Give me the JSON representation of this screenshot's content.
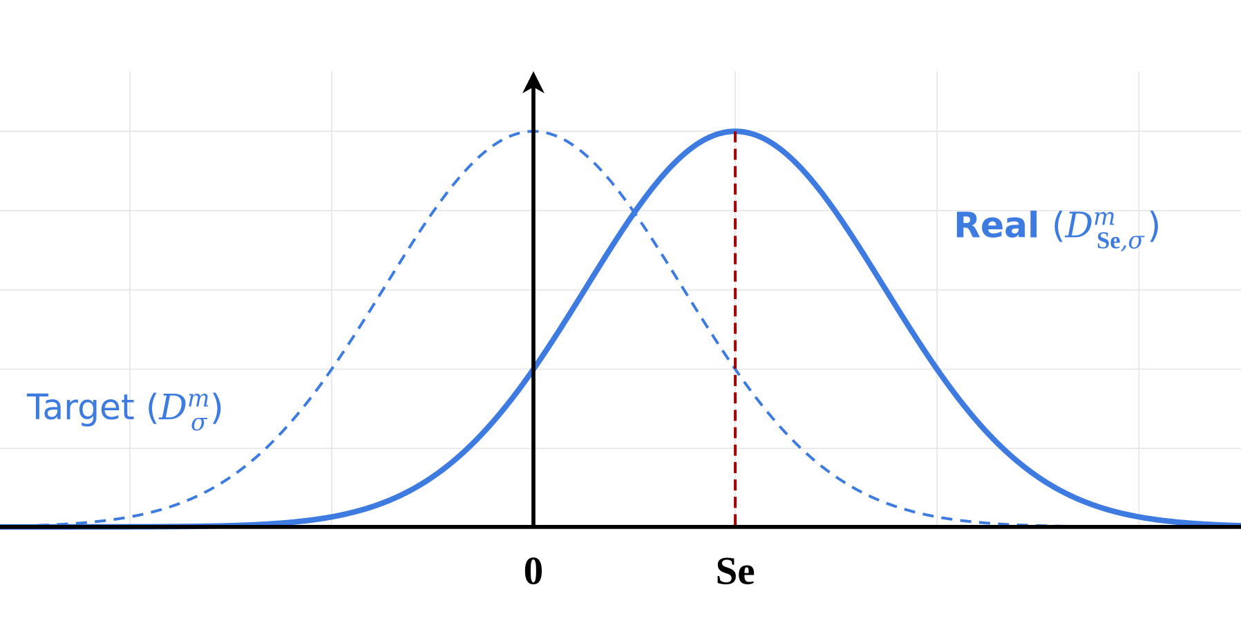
{
  "x_labels": {
    "origin": "0",
    "shift": "Se"
  },
  "target_label": {
    "name": "Target",
    "open": "(",
    "symbol": "D",
    "sup": "m",
    "sub": "σ",
    "close": ")"
  },
  "real_label": {
    "name": "Real",
    "open": "(",
    "symbol": "D",
    "sup": "m",
    "sub_bold": "Se",
    "sub": ",σ",
    "close": ")"
  }
}
